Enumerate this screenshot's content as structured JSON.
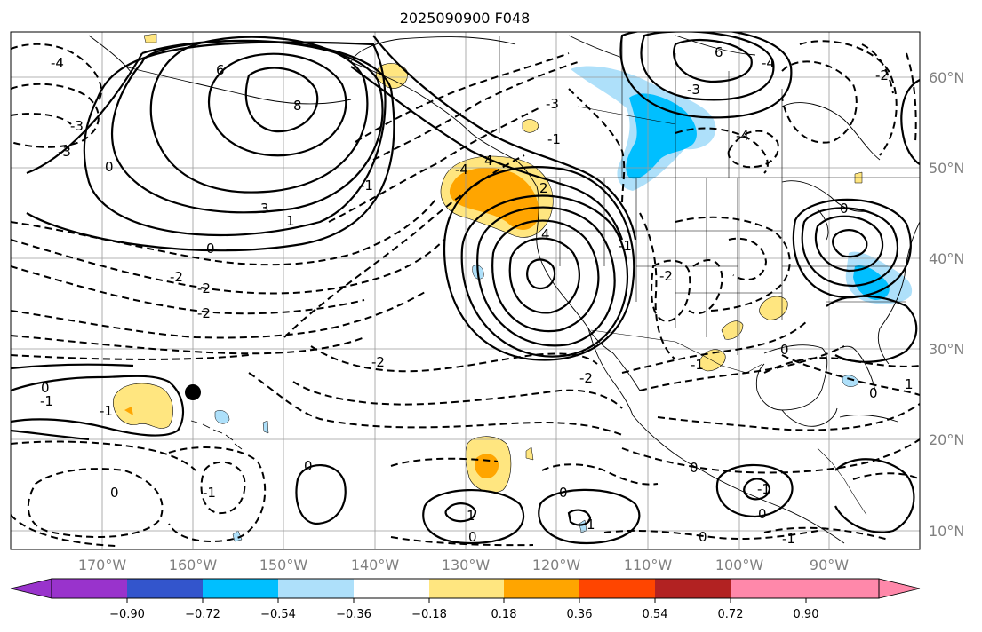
{
  "title": "2025090900 F048",
  "lat_labels": [
    "60°N",
    "50°N",
    "40°N",
    "30°N",
    "20°N",
    "10°N"
  ],
  "lon_labels": [
    "170°W",
    "160°W",
    "150°W",
    "140°W",
    "130°W",
    "120°W",
    "110°W",
    "100°W",
    "90°W"
  ],
  "colorbar": {
    "ticks": [
      "−0.90",
      "−0.72",
      "−0.54",
      "−0.36",
      "−0.18",
      "0.18",
      "0.36",
      "0.54",
      "0.72",
      "0.90"
    ],
    "colors": [
      "#9933cc",
      "#00008b",
      "#3355cc",
      "#00bfff",
      "#aee0fa",
      "#ffffff",
      "#ffe680",
      "#ffa500",
      "#ff4500",
      "#b22222",
      "#ff88aa"
    ]
  },
  "contour_labels": [
    {
      "text": "-4"
    },
    {
      "text": "-3"
    },
    {
      "text": "-3"
    },
    {
      "text": "0"
    },
    {
      "text": "6"
    },
    {
      "text": "8"
    },
    {
      "text": "3"
    },
    {
      "text": "1"
    },
    {
      "text": "0"
    },
    {
      "text": "-2"
    },
    {
      "text": "-2"
    },
    {
      "text": "-2"
    },
    {
      "text": "-1"
    },
    {
      "text": "-2"
    },
    {
      "text": "-2"
    },
    {
      "text": "-4"
    },
    {
      "text": "4"
    },
    {
      "text": "2"
    },
    {
      "text": "4"
    },
    {
      "text": "-3"
    },
    {
      "text": "-1"
    },
    {
      "text": "-3"
    },
    {
      "text": "6"
    },
    {
      "text": "-4"
    },
    {
      "text": "-4"
    },
    {
      "text": "-2"
    },
    {
      "text": "-1"
    },
    {
      "text": "0"
    },
    {
      "text": "-2"
    },
    {
      "text": "-1"
    },
    {
      "text": "0"
    },
    {
      "text": "-1"
    },
    {
      "text": "0"
    },
    {
      "text": "-1"
    },
    {
      "text": "0"
    },
    {
      "text": "0"
    },
    {
      "text": "-1"
    },
    {
      "text": "1"
    },
    {
      "text": "0"
    },
    {
      "text": "1"
    },
    {
      "text": "0"
    },
    {
      "text": "-1"
    },
    {
      "text": "0"
    },
    {
      "text": "1"
    },
    {
      "text": "0"
    },
    {
      "text": "-1"
    },
    {
      "text": "0"
    },
    {
      "text": "0"
    }
  ],
  "marker": {
    "name": "station-marker",
    "color": "#000000"
  }
}
